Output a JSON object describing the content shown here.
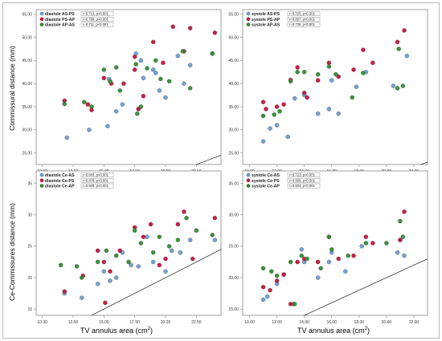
{
  "labels": {
    "ylabel_top": "Commissural distance (mm)",
    "ylabel_bottom": "Ce-Commissures distance (mm)",
    "xlabel_unit_sup": "2",
    "xlabel_left": "TV annulus area (cm",
    "xlabel_left_end": ")",
    "xlabel_right": "TV annulus area (cm",
    "xlabel_right_end": ")"
  },
  "colors": {
    "blue": "#6b9bd1",
    "red": "#c4123a",
    "green": "#2e8b2e",
    "line": "#333333",
    "frame": "#888888"
  },
  "chart_data": [
    {
      "type": "scatter",
      "panel": "top-left",
      "xlim": [
        9.5,
        24.5
      ],
      "ylim": [
        22.5,
        56
      ],
      "xticks": [
        "10.00",
        "12.50",
        "15.00",
        "17.50",
        "20.00",
        "22.50"
      ],
      "yticks": [
        "25.00",
        "30.00",
        "35.00",
        "40.00",
        "45.00",
        "50.00",
        "55.00"
      ],
      "legend_position": "top-left",
      "series": [
        {
          "name": "diastole AS-PS",
          "annotation": "r=0.713, p<0.001",
          "color": "#6b9bd1",
          "x": [
            12.0,
            13.8,
            15.3,
            16.0,
            15.4,
            16.5,
            17.8,
            18.0,
            18.2,
            19.0,
            19.5,
            20.0,
            21.5,
            22.0,
            23.8,
            17.6,
            19.2,
            21.0
          ],
          "y": [
            28.3,
            30.0,
            30.8,
            34.0,
            41.0,
            35.5,
            34.5,
            45.0,
            41.2,
            43.0,
            38.5,
            37.0,
            40.0,
            44.0,
            46.5,
            46.5,
            42.3,
            46.0
          ]
        },
        {
          "name": "diastole PS-AP",
          "annotation": "r=0.799, p<0.001",
          "color": "#c4123a",
          "x": [
            11.8,
            13.7,
            14.0,
            15.0,
            15.6,
            16.6,
            17.5,
            17.8,
            18.2,
            19.0,
            19.8,
            20.6,
            21.5,
            22.0,
            24.0,
            17.5
          ],
          "y": [
            36.3,
            35.5,
            34.3,
            41.2,
            40.0,
            40.0,
            45.8,
            34.5,
            37.3,
            49.0,
            44.5,
            52.3,
            47.0,
            52.0,
            51.0,
            43.0
          ]
        },
        {
          "name": "diastole AP-AS",
          "annotation": "r=0.711, p<0.001",
          "color": "#2e8b2e",
          "x": [
            11.8,
            13.4,
            14.0,
            15.5,
            16.0,
            16.3,
            17.6,
            18.0,
            18.5,
            19.2,
            19.6,
            20.3,
            21.4,
            22.0,
            23.8,
            17.7,
            15.0
          ],
          "y": [
            35.6,
            36.0,
            35.0,
            40.5,
            43.5,
            38.5,
            44.2,
            35.0,
            43.3,
            45.0,
            41.0,
            40.5,
            47.0,
            39.0,
            46.5,
            33.5,
            43.0
          ]
        }
      ]
    },
    {
      "type": "scatter",
      "panel": "top-right",
      "xlim": [
        9.5,
        23.0
      ],
      "ylim": [
        22.5,
        56
      ],
      "xticks": [
        "10.00",
        "12.00",
        "14.00",
        "16.00",
        "18.00",
        "20.00",
        "22.00"
      ],
      "yticks": [
        "25.00",
        "30.00",
        "35.00",
        "40.00",
        "45.00",
        "50.00",
        "55.00"
      ],
      "legend_position": "top-left",
      "series": [
        {
          "name": "systole AS-PS",
          "annotation": "r=0.725, p<0.001",
          "color": "#6b9bd1",
          "x": [
            11.0,
            11.5,
            12.0,
            12.8,
            13.3,
            14.0,
            15.0,
            15.8,
            16.0,
            16.5,
            17.8,
            18.5,
            20.5,
            21.5
          ],
          "y": [
            27.5,
            30.3,
            31.0,
            28.5,
            36.8,
            37.5,
            33.5,
            34.5,
            40.7,
            33.5,
            39.3,
            42.5,
            39.5,
            46.0
          ]
        },
        {
          "name": "systole PS-AP",
          "annotation": "r=0.897, p<0.001",
          "color": "#c4123a",
          "x": [
            11.0,
            11.2,
            12.0,
            12.5,
            13.0,
            13.5,
            14.0,
            15.0,
            15.8,
            16.5,
            17.6,
            18.3,
            19.0,
            20.8,
            21.3,
            14.2
          ],
          "y": [
            36.0,
            34.5,
            35.0,
            35.5,
            40.8,
            43.5,
            38.0,
            40.7,
            44.5,
            41.5,
            43.0,
            47.3,
            44.5,
            49.0,
            51.5,
            37.0
          ]
        },
        {
          "name": "systole AP-AS",
          "annotation": "r=0.739, p<0.001",
          "color": "#2e8b2e",
          "x": [
            11.0,
            11.8,
            12.2,
            13.0,
            13.5,
            14.0,
            15.8,
            16.3,
            17.5,
            18.3,
            20.8,
            21.2,
            20.9,
            15.0
          ],
          "y": [
            33.0,
            33.3,
            34.0,
            40.5,
            42.5,
            42.5,
            43.7,
            42.0,
            37.0,
            42.3,
            39.0,
            39.5,
            47.5,
            42.0
          ]
        }
      ]
    },
    {
      "type": "scatter",
      "panel": "bottom-left",
      "xlim": [
        9.5,
        24.5
      ],
      "ylim": [
        14,
        37
      ],
      "xticks": [
        "10.00",
        "12.50",
        "15.00",
        "17.50",
        "20.00",
        "22.50"
      ],
      "yticks": [
        "15",
        "20",
        "25",
        "30",
        "35"
      ],
      "legend_position": "top-left",
      "series": [
        {
          "name": "diastole Ce-AS",
          "annotation": "r=0.843, p<0.001",
          "color": "#6b9bd1",
          "x": [
            11.8,
            13.2,
            14.5,
            15.0,
            15.5,
            16.0,
            16.5,
            17.2,
            17.8,
            18.5,
            19.0,
            20.0,
            21.2,
            22.0,
            24.0,
            20.5
          ],
          "y": [
            17.5,
            16.8,
            19.0,
            21.0,
            19.5,
            20.0,
            24.0,
            22.0,
            21.8,
            26.5,
            22.5,
            21.0,
            24.0,
            26.0,
            26.0,
            24.3
          ]
        },
        {
          "name": "diastole Ce-PS",
          "annotation": "r=0.876, p<0.001",
          "color": "#c4123a",
          "x": [
            11.8,
            13.3,
            14.5,
            15.0,
            15.5,
            16.3,
            17.5,
            18.2,
            18.8,
            19.5,
            20.0,
            21.0,
            21.5,
            22.2,
            24.0,
            15.1
          ],
          "y": [
            17.8,
            20.3,
            24.3,
            22.5,
            21.0,
            24.3,
            28.0,
            26.5,
            28.5,
            22.0,
            23.0,
            28.5,
            30.5,
            23.0,
            29.5,
            16.0
          ]
        },
        {
          "name": "diastole Ce-AP",
          "annotation": "r=0.829, p<0.001",
          "color": "#2e8b2e",
          "x": [
            11.5,
            12.8,
            13.2,
            14.5,
            15.2,
            16.0,
            17.5,
            18.0,
            19.0,
            19.5,
            20.3,
            21.0,
            21.7,
            22.5,
            23.8,
            17.0
          ],
          "y": [
            22.0,
            21.8,
            20.0,
            22.5,
            24.3,
            23.5,
            27.5,
            25.5,
            24.0,
            26.5,
            25.0,
            26.0,
            29.5,
            27.5,
            26.8,
            22.5
          ]
        }
      ]
    },
    {
      "type": "scatter",
      "panel": "bottom-right",
      "xlim": [
        9.5,
        23.0
      ],
      "ylim": [
        14,
        37
      ],
      "xticks": [
        "10.00",
        "12.00",
        "14.00",
        "16.00",
        "18.00",
        "20.00",
        "22.00"
      ],
      "yticks": [
        "15.00",
        "20.00",
        "25.00",
        "30.00",
        "35.00"
      ],
      "legend_position": "top-left",
      "series": [
        {
          "name": "systole Ce-AS",
          "annotation": "r=0.723, p<0.001",
          "color": "#6b9bd1",
          "x": [
            11.0,
            11.3,
            12.0,
            12.5,
            13.2,
            13.8,
            14.0,
            15.0,
            15.8,
            16.0,
            17.0,
            18.2,
            20.8,
            21.3,
            21.0
          ],
          "y": [
            16.5,
            17.0,
            19.0,
            20.5,
            15.8,
            24.5,
            22.5,
            20.0,
            22.5,
            24.0,
            21.0,
            25.0,
            24.0,
            23.5,
            26.0
          ]
        },
        {
          "name": "systole Ce-PS",
          "annotation": "r=0.808, p<0.001",
          "color": "#c4123a",
          "x": [
            11.0,
            11.5,
            12.0,
            12.5,
            13.0,
            13.5,
            14.0,
            15.0,
            15.8,
            16.5,
            17.6,
            18.5,
            19.0,
            21.0,
            21.3
          ],
          "y": [
            18.5,
            18.0,
            19.5,
            20.5,
            15.8,
            22.5,
            23.0,
            22.5,
            26.5,
            23.0,
            23.5,
            26.5,
            25.5,
            26.0,
            30.5
          ]
        },
        {
          "name": "systole Ce-AP",
          "annotation": "r=0.833, p<0.001",
          "color": "#2e8b2e",
          "x": [
            11.0,
            11.6,
            12.0,
            13.0,
            13.8,
            14.2,
            15.2,
            15.8,
            16.0,
            17.2,
            18.5,
            20.0,
            21.0,
            21.2,
            13.3
          ],
          "y": [
            21.5,
            21.0,
            20.3,
            22.5,
            23.5,
            23.0,
            21.5,
            26.5,
            24.5,
            23.5,
            25.5,
            25.5,
            29.0,
            26.5,
            15.8
          ]
        }
      ]
    }
  ]
}
